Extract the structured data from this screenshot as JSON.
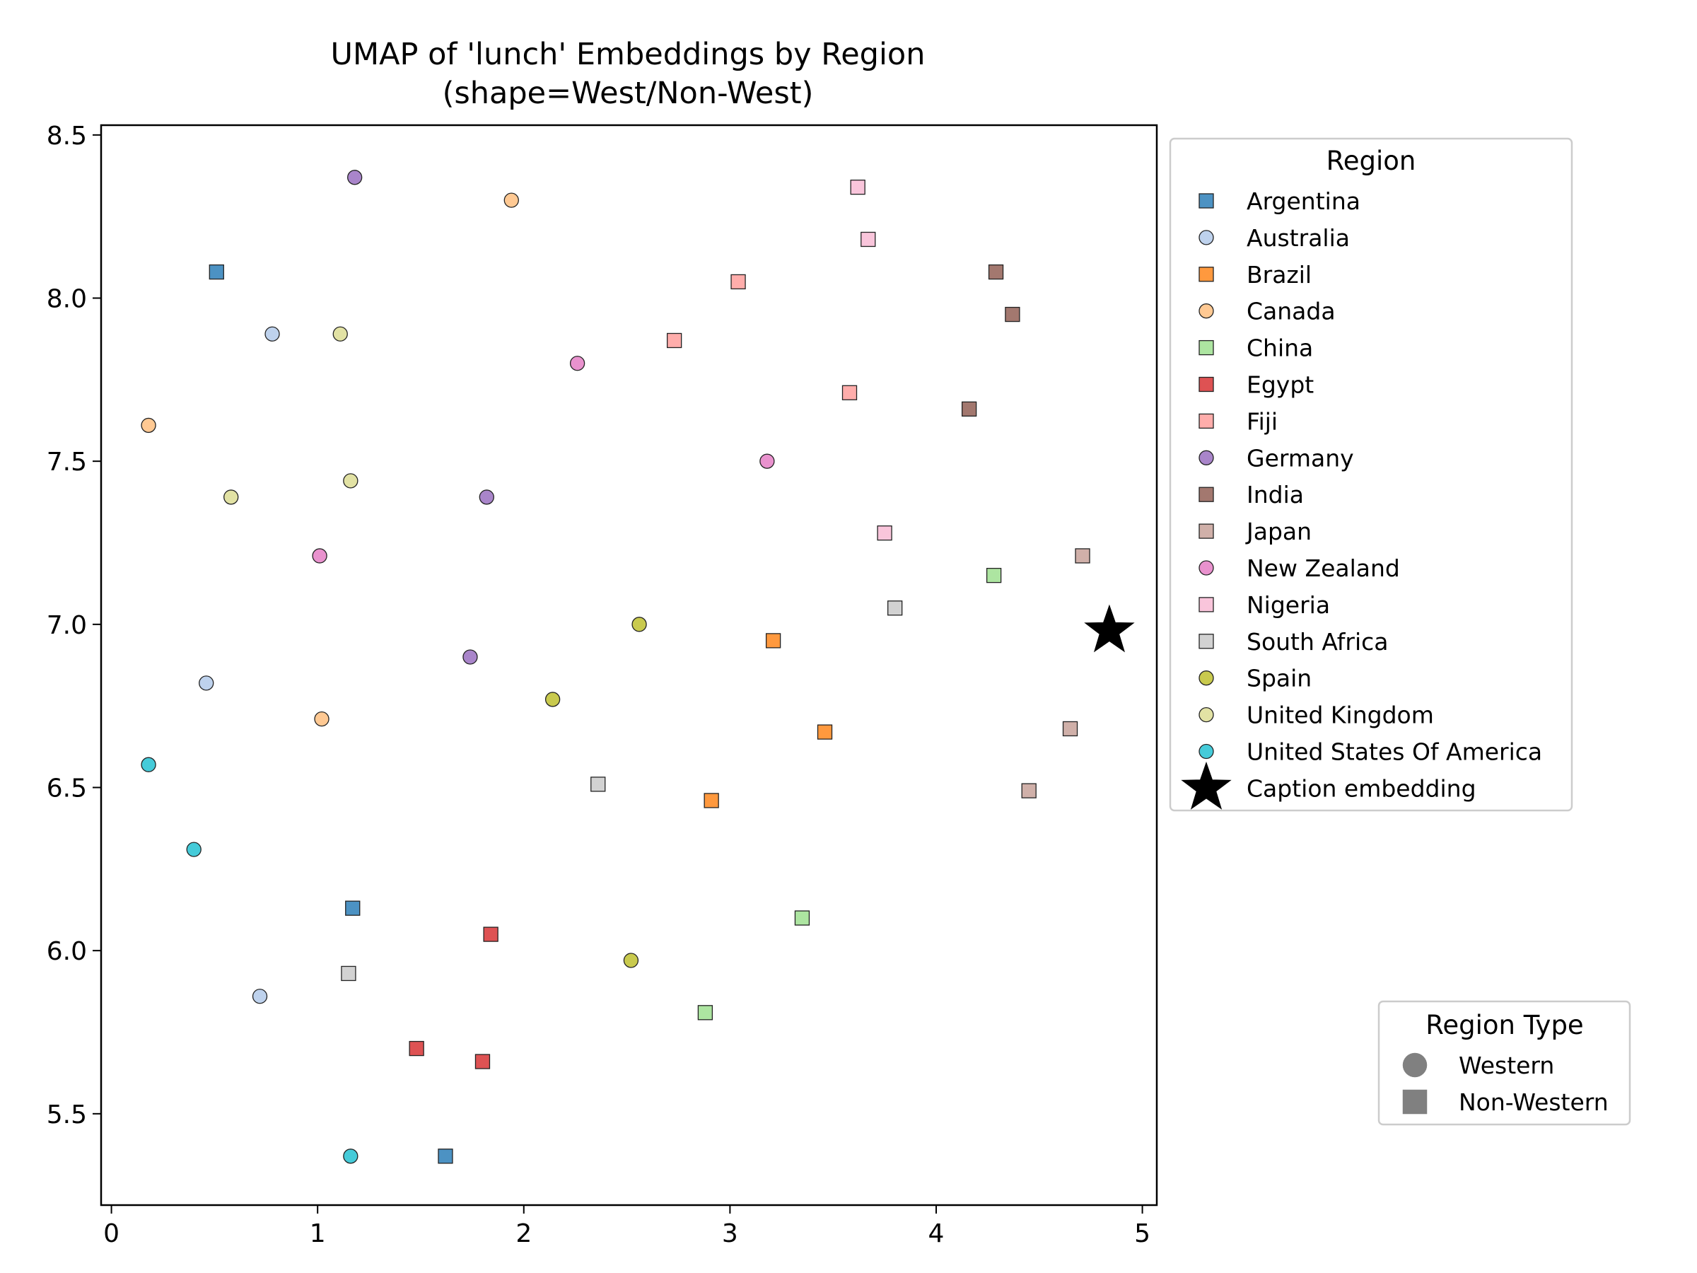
{
  "chart_data": {
    "type": "scatter",
    "title": "UMAP of 'lunch' Embeddings by Region",
    "subtitle": "(shape=West/Non-West)",
    "xlabel": "",
    "ylabel": "",
    "xlim": [
      -0.05,
      5.07
    ],
    "ylim": [
      5.22,
      8.53
    ],
    "xticks": [
      0,
      1,
      2,
      3,
      4,
      5
    ],
    "yticks": [
      5.5,
      6.0,
      6.5,
      7.0,
      7.5,
      8.0,
      8.5
    ],
    "xtick_labels": [
      "0",
      "1",
      "2",
      "3",
      "4",
      "5"
    ],
    "ytick_labels": [
      "5.5",
      "6.0",
      "6.5",
      "7.0",
      "7.5",
      "8.0",
      "8.5"
    ],
    "grid": false,
    "legend_title": "Region",
    "legend_position": "outside-right-top",
    "shape_legend_title": "Region Type",
    "shape_legend_position": "outside-right-bottom",
    "shape_legend": [
      {
        "label": "Western",
        "shape": "circle"
      },
      {
        "label": "Non-Western",
        "shape": "square"
      }
    ],
    "series": [
      {
        "name": "Argentina",
        "color": "#1f77b4",
        "shape": "square",
        "points": [
          [
            0.51,
            8.08
          ],
          [
            1.17,
            6.13
          ],
          [
            1.62,
            5.37
          ]
        ]
      },
      {
        "name": "Australia",
        "color": "#aec7e8",
        "shape": "circle",
        "points": [
          [
            0.78,
            7.89
          ],
          [
            0.46,
            6.82
          ],
          [
            0.72,
            5.86
          ]
        ]
      },
      {
        "name": "Brazil",
        "color": "#ff7f0e",
        "shape": "square",
        "points": [
          [
            3.21,
            6.95
          ],
          [
            3.46,
            6.67
          ],
          [
            2.91,
            6.46
          ]
        ]
      },
      {
        "name": "Canada",
        "color": "#ffbb78",
        "shape": "circle",
        "points": [
          [
            1.94,
            8.3
          ],
          [
            0.18,
            7.61
          ],
          [
            1.02,
            6.71
          ]
        ]
      },
      {
        "name": "China",
        "color": "#98df8a",
        "shape": "square",
        "points": [
          [
            4.28,
            7.15
          ],
          [
            3.35,
            6.1
          ],
          [
            2.88,
            5.81
          ]
        ]
      },
      {
        "name": "Egypt",
        "color": "#d62728",
        "shape": "square",
        "points": [
          [
            1.84,
            6.05
          ],
          [
            1.48,
            5.7
          ],
          [
            1.8,
            5.66
          ]
        ]
      },
      {
        "name": "Fiji",
        "color": "#ff9896",
        "shape": "square",
        "points": [
          [
            3.04,
            8.05
          ],
          [
            2.73,
            7.87
          ],
          [
            3.58,
            7.71
          ]
        ]
      },
      {
        "name": "Germany",
        "color": "#9467bd",
        "shape": "circle",
        "points": [
          [
            1.18,
            8.37
          ],
          [
            1.82,
            7.39
          ],
          [
            1.74,
            6.9
          ]
        ]
      },
      {
        "name": "India",
        "color": "#8c564b",
        "shape": "square",
        "points": [
          [
            4.29,
            8.08
          ],
          [
            4.37,
            7.95
          ],
          [
            4.16,
            7.66
          ]
        ]
      },
      {
        "name": "Japan",
        "color": "#c49c94",
        "shape": "square",
        "points": [
          [
            4.71,
            7.21
          ],
          [
            4.65,
            6.68
          ],
          [
            4.45,
            6.49
          ]
        ]
      },
      {
        "name": "New Zealand",
        "color": "#e377c2",
        "shape": "circle",
        "points": [
          [
            2.26,
            7.8
          ],
          [
            3.18,
            7.5
          ],
          [
            1.01,
            7.21
          ]
        ]
      },
      {
        "name": "Nigeria",
        "color": "#f7b6d2",
        "shape": "square",
        "points": [
          [
            3.62,
            8.34
          ],
          [
            3.67,
            8.18
          ],
          [
            3.75,
            7.28
          ]
        ]
      },
      {
        "name": "South Africa",
        "color": "#c7c7c7",
        "shape": "square",
        "points": [
          [
            3.8,
            7.05
          ],
          [
            2.36,
            6.51
          ],
          [
            1.15,
            5.93
          ]
        ]
      },
      {
        "name": "Spain",
        "color": "#bcbd22",
        "shape": "circle",
        "points": [
          [
            2.56,
            7.0
          ],
          [
            2.14,
            6.77
          ],
          [
            2.52,
            5.97
          ]
        ]
      },
      {
        "name": "United Kingdom",
        "color": "#dbdb8d",
        "shape": "circle",
        "points": [
          [
            1.11,
            7.89
          ],
          [
            0.58,
            7.39
          ],
          [
            1.16,
            7.44
          ]
        ]
      },
      {
        "name": "United States Of America",
        "color": "#17becf",
        "shape": "circle",
        "points": [
          [
            0.18,
            6.57
          ],
          [
            0.4,
            6.31
          ],
          [
            1.16,
            5.37
          ]
        ]
      }
    ],
    "highlight": {
      "name": "Caption embedding",
      "color": "#000000",
      "shape": "star",
      "point": [
        4.84,
        6.98
      ]
    }
  }
}
